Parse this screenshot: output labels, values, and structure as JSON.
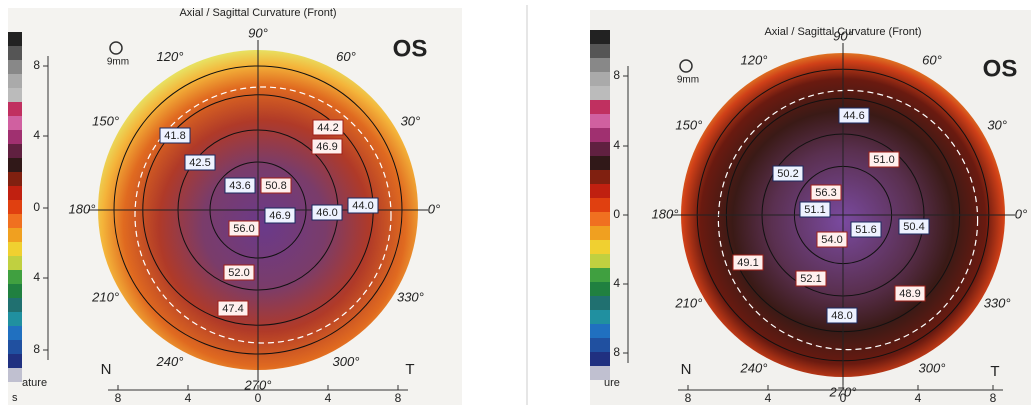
{
  "panels": [
    {
      "title": "Axial / Sagittal Curvature (Front)",
      "eye": "OS",
      "scale": "9mm",
      "angles": [
        "90°",
        "60°",
        "30°",
        "0°",
        "330°",
        "300°",
        "270°",
        "240°",
        "210°",
        "180°",
        "150°",
        "120°"
      ],
      "y_ticks": [
        "8",
        "4",
        "0",
        "4",
        "8"
      ],
      "x_ticks": [
        "8",
        "4",
        "0",
        "4",
        "8"
      ],
      "nasal": "N",
      "temporal": "T",
      "legend_fragments": [
        "ature",
        "s"
      ],
      "readings": [
        {
          "label": "41.8",
          "kind": "blue"
        },
        {
          "label": "42.5",
          "kind": "blue"
        },
        {
          "label": "43.6",
          "kind": "blue"
        },
        {
          "label": "46.9",
          "kind": "blue"
        },
        {
          "label": "46.0",
          "kind": "blue"
        },
        {
          "label": "44.0",
          "kind": "blue"
        },
        {
          "label": "44.2",
          "kind": "red"
        },
        {
          "label": "46.9",
          "kind": "red"
        },
        {
          "label": "50.8",
          "kind": "red"
        },
        {
          "label": "56.0",
          "kind": "red"
        },
        {
          "label": "52.0",
          "kind": "red"
        },
        {
          "label": "47.4",
          "kind": "red"
        }
      ]
    },
    {
      "title": "Axial / Sagittal Curvature (Front)",
      "eye": "OS",
      "scale": "9mm",
      "angles": [
        "90°",
        "60°",
        "30°",
        "0°",
        "330°",
        "300°",
        "270°",
        "240°",
        "210°",
        "180°",
        "150°",
        "120°"
      ],
      "y_ticks": [
        "8",
        "4",
        "0",
        "4",
        "8"
      ],
      "x_ticks": [
        "8",
        "4",
        "0",
        "4",
        "8"
      ],
      "nasal": "N",
      "temporal": "T",
      "legend_fragments": [
        "ure"
      ],
      "readings": [
        {
          "label": "44.6",
          "kind": "blue"
        },
        {
          "label": "50.2",
          "kind": "blue"
        },
        {
          "label": "51.1",
          "kind": "blue"
        },
        {
          "label": "51.6",
          "kind": "blue"
        },
        {
          "label": "50.4",
          "kind": "blue"
        },
        {
          "label": "48.0",
          "kind": "blue"
        },
        {
          "label": "51.0",
          "kind": "red"
        },
        {
          "label": "56.3",
          "kind": "red"
        },
        {
          "label": "54.0",
          "kind": "red"
        },
        {
          "label": "49.1",
          "kind": "red"
        },
        {
          "label": "52.1",
          "kind": "red"
        },
        {
          "label": "48.9",
          "kind": "red"
        }
      ]
    }
  ]
}
